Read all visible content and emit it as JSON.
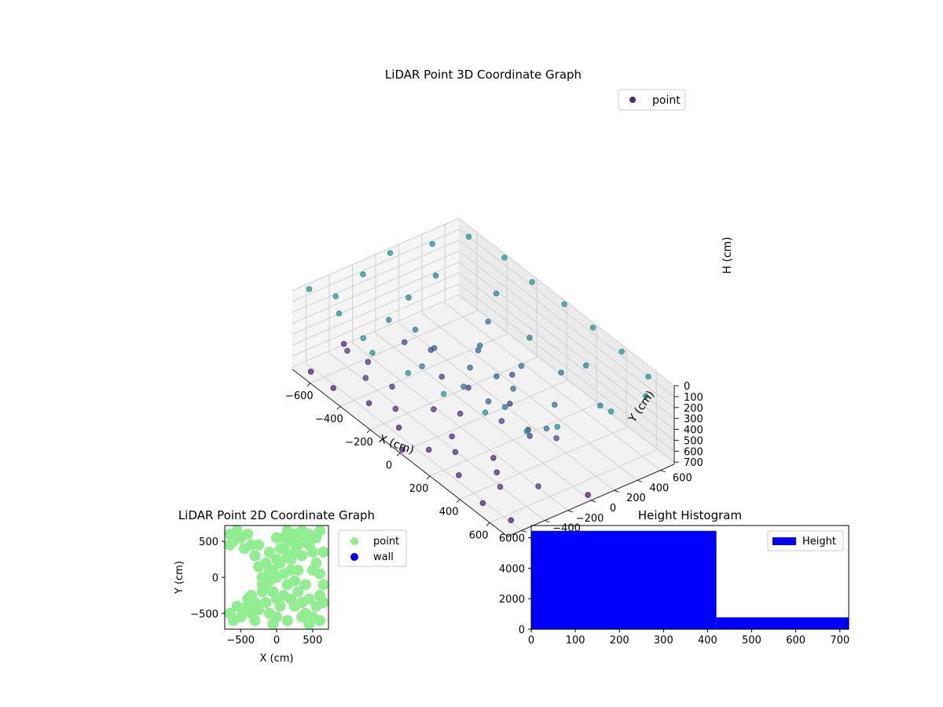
{
  "chart_data": [
    {
      "type": "scatter3d",
      "title": "LiDAR Point 3D Coordinate Graph",
      "xlabel": "X (cm)",
      "ylabel": "Y (cm)",
      "zlabel": "H (cm)",
      "xlim": [
        -720,
        720
      ],
      "ylim": [
        -720,
        720
      ],
      "zlim": [
        0,
        720
      ],
      "z_inverted": true,
      "xticks": [
        "−600",
        "−400",
        "−200",
        "0",
        "200",
        "400",
        "600"
      ],
      "yticks": [
        "−600",
        "−400",
        "−200",
        "0",
        "200",
        "400",
        "600"
      ],
      "zticks": [
        "0",
        "100",
        "200",
        "300",
        "400",
        "500",
        "600",
        "700"
      ],
      "legend": [
        {
          "label": "point",
          "color": "#472d7b"
        }
      ],
      "legend_position": "top-right",
      "grid": true,
      "colormap": "viridis",
      "series": [
        {
          "name": "point",
          "points": [
            [
              -700,
              -600,
              20
            ],
            [
              -600,
              -500,
              25
            ],
            [
              -500,
              -600,
              30
            ],
            [
              -300,
              -650,
              20
            ],
            [
              -200,
              -700,
              25
            ],
            [
              0,
              -650,
              20
            ],
            [
              200,
              -600,
              22
            ],
            [
              400,
              -500,
              25
            ],
            [
              600,
              -400,
              30
            ],
            [
              650,
              -200,
              28
            ],
            [
              -650,
              -200,
              15
            ],
            [
              -700,
              100,
              10
            ],
            [
              -650,
              400,
              12
            ],
            [
              -600,
              650,
              8
            ],
            [
              -400,
              700,
              10
            ],
            [
              -200,
              680,
              12
            ],
            [
              0,
              700,
              10
            ],
            [
              200,
              690,
              8
            ],
            [
              400,
              680,
              10
            ],
            [
              600,
              650,
              12
            ],
            [
              700,
              500,
              15
            ],
            [
              700,
              200,
              18
            ],
            [
              -400,
              -300,
              120
            ],
            [
              -300,
              -200,
              150
            ],
            [
              -100,
              -400,
              180
            ],
            [
              100,
              -300,
              200
            ],
            [
              300,
              -200,
              220
            ],
            [
              200,
              0,
              250
            ],
            [
              100,
              200,
              240
            ],
            [
              -100,
              100,
              220
            ],
            [
              -200,
              300,
              200
            ],
            [
              0,
              400,
              180
            ],
            [
              250,
              350,
              210
            ],
            [
              400,
              100,
              230
            ],
            [
              500,
              -100,
              250
            ],
            [
              -500,
              0,
              160
            ],
            [
              -550,
              300,
              150
            ],
            [
              -300,
              500,
              140
            ],
            [
              300,
              500,
              160
            ],
            [
              550,
              300,
              170
            ],
            [
              -50,
              -50,
              300
            ],
            [
              50,
              50,
              320
            ],
            [
              150,
              -150,
              350
            ],
            [
              -150,
              150,
              340
            ],
            [
              -250,
              -100,
              310
            ],
            [
              0,
              -200,
              600
            ],
            [
              -100,
              -300,
              620
            ],
            [
              100,
              -400,
              610
            ],
            [
              -300,
              -400,
              580
            ],
            [
              200,
              -500,
              600
            ],
            [
              -400,
              -500,
              560
            ],
            [
              300,
              -300,
              640
            ],
            [
              400,
              -400,
              620
            ],
            [
              -500,
              -350,
              590
            ],
            [
              -200,
              -500,
              630
            ],
            [
              500,
              -500,
              600
            ],
            [
              600,
              -300,
              580
            ],
            [
              -600,
              -400,
              570
            ],
            [
              100,
              -600,
              640
            ],
            [
              -100,
              -600,
              650
            ],
            [
              300,
              -600,
              660
            ],
            [
              -300,
              -600,
              640
            ],
            [
              500,
              -650,
              680
            ],
            [
              -500,
              -650,
              690
            ],
            [
              0,
              -700,
              700
            ],
            [
              200,
              -100,
              500
            ],
            [
              300,
              0,
              520
            ],
            [
              100,
              100,
              540
            ],
            [
              -100,
              0,
              560
            ],
            [
              -200,
              -100,
              520
            ],
            [
              -350,
              0,
              480
            ],
            [
              350,
              -50,
              500
            ],
            [
              450,
              50,
              460
            ],
            [
              -450,
              -100,
              470
            ],
            [
              0,
              250,
              450
            ],
            [
              650,
              -600,
              700
            ],
            [
              -650,
              -650,
              700
            ],
            [
              700,
              0,
              690
            ],
            [
              -700,
              -300,
              660
            ]
          ]
        }
      ]
    },
    {
      "type": "scatter",
      "title": "LiDAR Point 2D Coordinate Graph",
      "xlabel": "X (cm)",
      "ylabel": "Y (cm)",
      "xlim": [
        -720,
        720
      ],
      "ylim": [
        -720,
        720
      ],
      "xticks": [
        "−500",
        "0",
        "500"
      ],
      "yticks": [
        "−500",
        "0",
        "500"
      ],
      "legend_position": "outside-right",
      "series": [
        {
          "name": "point",
          "color": "#90ee90",
          "points": [
            [
              -650,
              600
            ],
            [
              -600,
              500
            ],
            [
              -550,
              650
            ],
            [
              -500,
              550
            ],
            [
              -450,
              400
            ],
            [
              -400,
              600
            ],
            [
              -350,
              450
            ],
            [
              -300,
              300
            ],
            [
              -250,
              150
            ],
            [
              -200,
              0
            ],
            [
              -150,
              200
            ],
            [
              -100,
              350
            ],
            [
              -50,
              100
            ],
            [
              0,
              250
            ],
            [
              50,
              400
            ],
            [
              100,
              550
            ],
            [
              150,
              650
            ],
            [
              200,
              500
            ],
            [
              250,
              600
            ],
            [
              300,
              450
            ],
            [
              350,
              650
            ],
            [
              400,
              500
            ],
            [
              450,
              600
            ],
            [
              500,
              350
            ],
            [
              550,
              200
            ],
            [
              600,
              50
            ],
            [
              650,
              -100
            ],
            [
              600,
              -250
            ],
            [
              550,
              -400
            ],
            [
              500,
              -550
            ],
            [
              450,
              -650
            ],
            [
              400,
              -500
            ],
            [
              350,
              -350
            ],
            [
              300,
              -200
            ],
            [
              250,
              -50
            ],
            [
              200,
              100
            ],
            [
              150,
              -100
            ],
            [
              100,
              -250
            ],
            [
              50,
              -400
            ],
            [
              0,
              -550
            ],
            [
              -50,
              -650
            ],
            [
              -100,
              -500
            ],
            [
              -150,
              -350
            ],
            [
              -200,
              -200
            ],
            [
              -250,
              -450
            ],
            [
              -300,
              -600
            ],
            [
              -350,
              -500
            ],
            [
              -400,
              -400
            ],
            [
              -450,
              -450
            ],
            [
              -500,
              -550
            ],
            [
              -550,
              -400
            ],
            [
              -600,
              -600
            ],
            [
              -650,
              -500
            ],
            [
              -200,
              -100
            ],
            [
              -100,
              -50
            ],
            [
              0,
              0
            ],
            [
              100,
              50
            ],
            [
              200,
              -300
            ],
            [
              300,
              100
            ],
            [
              400,
              -100
            ],
            [
              500,
              100
            ],
            [
              350,
              300
            ],
            [
              250,
              350
            ],
            [
              150,
              300
            ],
            [
              50,
              200
            ],
            [
              -50,
              -200
            ],
            [
              -150,
              -150
            ],
            [
              450,
              450
            ],
            [
              550,
              550
            ],
            [
              600,
              650
            ],
            [
              650,
              350
            ],
            [
              650,
              -350
            ],
            [
              600,
              -600
            ],
            [
              -400,
              -300
            ],
            [
              -350,
              -250
            ],
            [
              -300,
              -350
            ],
            [
              250,
              -400
            ],
            [
              350,
              -550
            ],
            [
              450,
              -300
            ],
            [
              150,
              -600
            ],
            [
              0,
              -300
            ],
            [
              -100,
              100
            ],
            [
              300,
              600
            ],
            [
              200,
              250
            ],
            [
              100,
              400
            ],
            [
              0,
              550
            ],
            [
              -250,
              450
            ],
            [
              -650,
              450
            ]
          ]
        },
        {
          "name": "wall",
          "color": "#0000ff",
          "points": []
        }
      ]
    },
    {
      "type": "bar",
      "title": "Height Histogram",
      "xlim": [
        0,
        720
      ],
      "ylim": [
        0,
        6800
      ],
      "xticks": [
        "0",
        "100",
        "200",
        "300",
        "400",
        "500",
        "600",
        "700"
      ],
      "yticks": [
        "0",
        "2000",
        "4000",
        "6000"
      ],
      "legend_position": "top-right",
      "series": [
        {
          "name": "Height",
          "color": "#0000ff",
          "bins": [
            {
              "start": 0,
              "end": 420,
              "count": 6450
            },
            {
              "start": 420,
              "end": 720,
              "count": 780
            }
          ]
        }
      ]
    }
  ]
}
